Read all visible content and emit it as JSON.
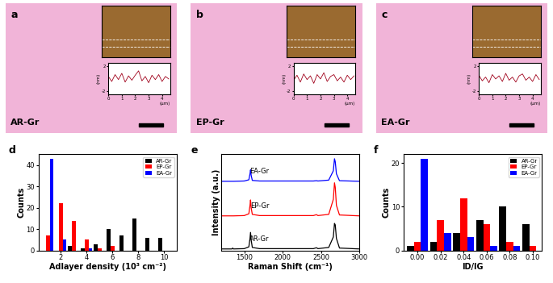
{
  "images": [
    {
      "label": "a",
      "sample": "AR-Gr",
      "profile": {
        "x": [
          0,
          0.25,
          0.5,
          0.75,
          1,
          1.25,
          1.5,
          1.75,
          2,
          2.25,
          2.5,
          2.75,
          3,
          3.25,
          3.5,
          3.75,
          4,
          4.25,
          4.5
        ],
        "values": [
          0.3,
          -0.5,
          0.6,
          -0.2,
          0.8,
          -0.6,
          0.4,
          -0.3,
          0.5,
          1.2,
          -0.4,
          0.3,
          -0.7,
          0.5,
          -0.2,
          0.6,
          -0.5,
          0.3,
          -0.1
        ],
        "xlim": [
          0,
          4.6
        ],
        "ylim": [
          -2.5,
          2.5
        ],
        "xticks": [
          0,
          1,
          2,
          3,
          4
        ],
        "yticks": [
          -2,
          2
        ],
        "x_label": "(μm)",
        "y_label": "(nm)",
        "color": "#a0001a"
      }
    },
    {
      "label": "b",
      "sample": "EP-Gr",
      "profile": {
        "x": [
          0,
          0.25,
          0.5,
          0.75,
          1,
          1.25,
          1.5,
          1.75,
          2,
          2.25,
          2.5,
          2.75,
          3,
          3.25,
          3.5,
          3.75,
          4,
          4.25,
          4.5
        ],
        "values": [
          -0.3,
          0.5,
          -0.6,
          0.7,
          -0.2,
          0.4,
          -0.8,
          0.6,
          -0.1,
          0.9,
          -0.5,
          0.3,
          0.6,
          -0.4,
          0.2,
          -0.6,
          0.5,
          -0.2,
          0.4
        ],
        "xlim": [
          0,
          4.6
        ],
        "ylim": [
          -2.5,
          2.5
        ],
        "xticks": [
          0,
          1,
          2,
          3,
          4
        ],
        "yticks": [
          -2,
          2
        ],
        "x_label": "(μm)",
        "y_label": "(nm)",
        "color": "#a0001a"
      }
    },
    {
      "label": "c",
      "sample": "EA-Gr",
      "profile": {
        "x": [
          0,
          0.25,
          0.5,
          0.75,
          1,
          1.25,
          1.5,
          1.75,
          2,
          2.25,
          2.5,
          2.75,
          3,
          3.25,
          3.5,
          3.75,
          4,
          4.25,
          4.5
        ],
        "values": [
          0.5,
          -0.4,
          0.2,
          -0.7,
          0.6,
          -0.1,
          0.4,
          -0.5,
          0.8,
          -0.3,
          0.2,
          -0.6,
          0.4,
          0.7,
          -0.3,
          0.2,
          -0.5,
          0.6,
          -0.2
        ],
        "xlim": [
          0,
          4.6
        ],
        "ylim": [
          -2.5,
          2.5
        ],
        "xticks": [
          0,
          1,
          2,
          3,
          4
        ],
        "yticks": [
          -2,
          2
        ],
        "x_label": "(μm)",
        "y_label": "(nm)",
        "color": "#a0001a"
      }
    }
  ],
  "chart_data": [
    {
      "type": "bar",
      "label": "d",
      "x_label": "Adlayer density (10³ cm⁻²)",
      "y_label": "Counts",
      "x": [
        1,
        2,
        3,
        4,
        5,
        6,
        7,
        8,
        9,
        10
      ],
      "series": [
        {
          "name": "AR-Gr",
          "color": "#000000",
          "values": [
            0,
            0,
            2,
            1,
            3,
            10,
            7,
            15,
            6,
            6
          ]
        },
        {
          "name": "EP-Gr",
          "color": "#ff0000",
          "values": [
            7,
            22,
            14,
            5,
            1,
            2,
            0,
            0,
            0,
            0
          ]
        },
        {
          "name": "EA-Gr",
          "color": "#0000ff",
          "values": [
            43,
            5,
            0,
            1,
            0,
            0,
            0,
            0,
            0,
            0
          ]
        }
      ],
      "xlim": [
        0.3,
        11
      ],
      "ylim": [
        0,
        45
      ],
      "xticks": [
        2,
        4,
        6,
        8,
        10
      ],
      "yticks": [
        0,
        10,
        20,
        30,
        40
      ],
      "legend": "upper right"
    },
    {
      "type": "line",
      "label": "e",
      "x_label": "Raman Shift (cm⁻¹)",
      "y_label": "Intensity (a.u.)",
      "x": [
        1200,
        1340,
        1350,
        1360,
        1500,
        1560,
        1575,
        1582,
        1590,
        1605,
        1700,
        2400,
        2440,
        2460,
        2600,
        2660,
        2675,
        2685,
        2700,
        2740,
        3000
      ],
      "series": [
        {
          "name": "AR-Gr",
          "color": "#000000",
          "values": [
            0.05,
            0.05,
            0.08,
            0.05,
            0.06,
            0.12,
            0.4,
            0.6,
            0.35,
            0.1,
            0.06,
            0.06,
            0.09,
            0.06,
            0.1,
            0.45,
            0.9,
            0.85,
            0.4,
            0.08,
            0.05
          ]
        },
        {
          "name": "EP-Gr",
          "color": "#ff0000",
          "values": [
            1.15,
            1.15,
            1.15,
            1.15,
            1.16,
            1.22,
            1.5,
            1.68,
            1.42,
            1.2,
            1.16,
            1.16,
            1.19,
            1.16,
            1.2,
            1.7,
            2.25,
            2.1,
            1.5,
            1.18,
            1.15
          ]
        },
        {
          "name": "EA-Gr",
          "color": "#0000ff",
          "values": [
            2.3,
            2.3,
            2.3,
            2.3,
            2.31,
            2.35,
            2.55,
            2.68,
            2.5,
            2.33,
            2.31,
            2.31,
            2.32,
            2.31,
            2.34,
            2.65,
            3.05,
            2.95,
            2.55,
            2.32,
            2.3
          ]
        }
      ],
      "xlim": [
        1200,
        3000
      ],
      "ylim": [
        0,
        3.2
      ],
      "xticks": [
        1500,
        2000,
        2500,
        3000
      ],
      "tick_labels": "x"
    },
    {
      "type": "bar",
      "label": "f",
      "x_label": "ID/IG",
      "y_label": "Counts",
      "x": [
        0.0,
        0.02,
        0.04,
        0.06,
        0.08,
        0.1
      ],
      "series": [
        {
          "name": "AR-Gr",
          "color": "#000000",
          "values": [
            1,
            2,
            4,
            7,
            10,
            6
          ]
        },
        {
          "name": "EP-Gr",
          "color": "#ff0000",
          "values": [
            2,
            7,
            12,
            6,
            2,
            1
          ]
        },
        {
          "name": "EA-Gr",
          "color": "#0000ff",
          "values": [
            21,
            4,
            3,
            1,
            1,
            0
          ]
        }
      ],
      "xlim": [
        -0.012,
        0.108
      ],
      "ylim": [
        0,
        22
      ],
      "xticks": [
        {
          "value": 0.0,
          "label": "0.00"
        },
        {
          "value": 0.02,
          "label": "0.02"
        },
        {
          "value": 0.04,
          "label": "0.04"
        },
        {
          "value": 0.06,
          "label": "0.06"
        },
        {
          "value": 0.08,
          "label": "0.08"
        },
        {
          "value": 0.1,
          "label": "0.10"
        }
      ],
      "yticks": [
        0,
        10,
        20
      ],
      "legend": "upper right"
    }
  ]
}
